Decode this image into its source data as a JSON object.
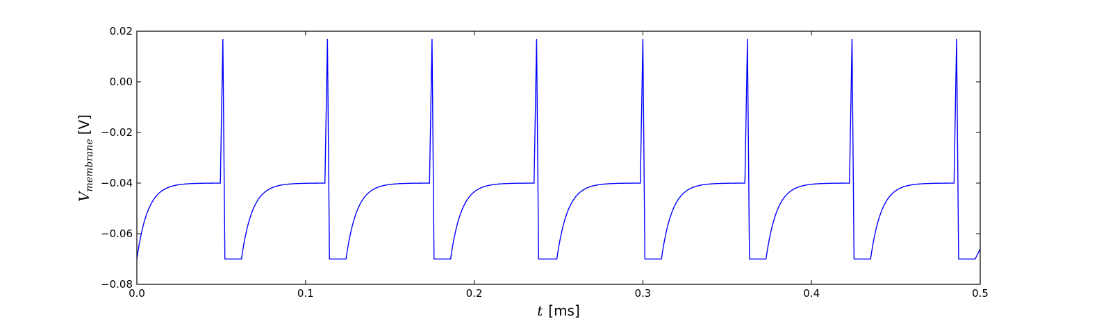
{
  "chart_data": {
    "type": "line",
    "title": "",
    "xlabel": {
      "symbol": "t",
      "unit": "[ms]"
    },
    "ylabel": {
      "symbol": "V",
      "subscript": "membrane",
      "unit": "[V]"
    },
    "xlim": [
      0.0,
      0.5
    ],
    "ylim": [
      -0.08,
      0.02
    ],
    "xticks": [
      "0.0",
      "0.1",
      "0.2",
      "0.3",
      "0.4",
      "0.5"
    ],
    "yticks": [
      "0.02",
      "0.00",
      "−0.02",
      "−0.04",
      "−0.06",
      "−0.08"
    ],
    "grid": false,
    "legend": "none",
    "series": [
      {
        "color": "#0000ff",
        "v_rest": -0.07,
        "v_threshold": -0.04,
        "v_peak": 0.017,
        "spike_times": [
          0.051,
          0.113,
          0.175,
          0.237,
          0.3,
          0.362,
          0.424,
          0.486
        ],
        "refractory_end_times": [
          0.062,
          0.124,
          0.186,
          0.249,
          0.311,
          0.373,
          0.435,
          0.497
        ],
        "end_value": -0.066
      }
    ]
  }
}
